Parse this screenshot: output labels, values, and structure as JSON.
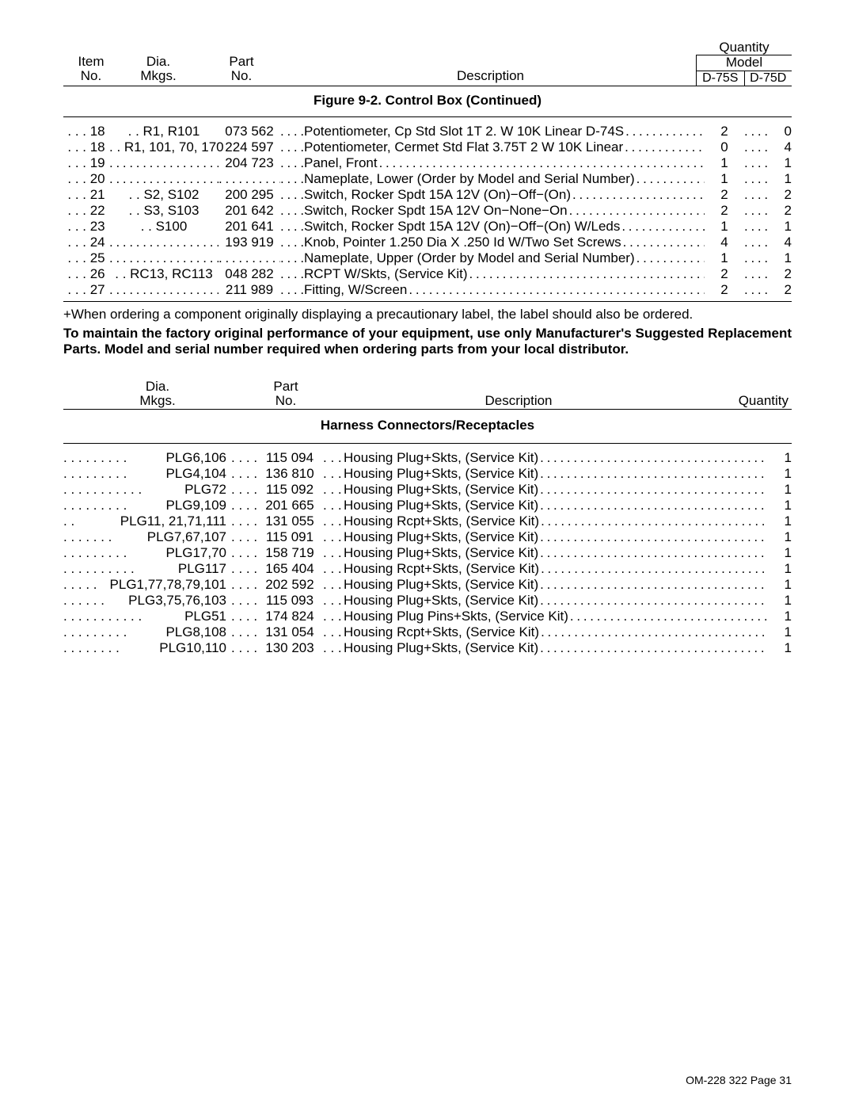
{
  "header1": {
    "quantity": "Quantity",
    "model": "Model",
    "item_no": "Item\nNo.",
    "dia_mkgs": "Dia.\nMkgs.",
    "part_no": "Part\nNo.",
    "description": "Description",
    "model_a": "D-75S",
    "model_b": "D-75D"
  },
  "figcaption1": "Figure 9-2. Control Box (Continued)",
  "parts1": [
    {
      "item": "18",
      "dia": "R1, R101",
      "part": "073 562",
      "desc": "Potentiometer, Cp Std Slot 1T 2. W 10K Linear D-74S",
      "q1": "2",
      "q2": "0"
    },
    {
      "item": "18",
      "dia": "R1, 101, 70, 170",
      "part": "224 597",
      "desc": "Potentiometer, Cermet Std Flat 3.75T 2 W 10K Linear",
      "q1": "0",
      "q2": "4"
    },
    {
      "item": "19",
      "dia": "",
      "part": "204 723",
      "desc": "Panel, Front",
      "q1": "1",
      "q2": "1"
    },
    {
      "item": "20",
      "dia": "",
      "part": "",
      "desc": "Nameplate, Lower (Order by Model and Serial Number)",
      "q1": "1",
      "q2": "1"
    },
    {
      "item": "21",
      "dia": "S2, S102",
      "part": "200 295",
      "desc": "Switch, Rocker Spdt 15A 12V (On)−Off−(On)",
      "q1": "2",
      "q2": "2"
    },
    {
      "item": "22",
      "dia": "S3, S103",
      "part": "201 642",
      "desc": "Switch, Rocker Spdt 15A 12V On−None−On",
      "q1": "2",
      "q2": "2"
    },
    {
      "item": "23",
      "dia": "S100",
      "part": "201 641",
      "desc": "Switch, Rocker Spdt 15A 12V (On)−Off−(On) W/Leds",
      "q1": "1",
      "q2": "1"
    },
    {
      "item": "24",
      "dia": "",
      "part": "193 919",
      "desc": "Knob, Pointer 1.250 Dia X .250 Id W/Two Set Screws",
      "q1": "4",
      "q2": "4"
    },
    {
      "item": "25",
      "dia": "",
      "part": "",
      "desc": "Nameplate, Upper (Order by Model and Serial Number)",
      "q1": "1",
      "q2": "1"
    },
    {
      "item": "26",
      "dia": "RC13, RC113",
      "part": "048 282",
      "desc": "RCPT W/Skts, (Service Kit)",
      "q1": "2",
      "q2": "2"
    },
    {
      "item": "27",
      "dia": "",
      "part": "211 989",
      "desc": "Fitting, W/Screen",
      "q1": "2",
      "q2": "2"
    }
  ],
  "note1": "+When ordering a component originally displaying a precautionary label, the label should also be ordered.",
  "note2": "To maintain the factory original performance of your equipment, use only Manufacturer's Suggested Replacement Parts. Model and serial number required when ordering parts from your local distributor.",
  "header2": {
    "dia_mkgs": "Dia.\nMkgs.",
    "part_no": "Part\nNo.",
    "description": "Description",
    "quantity": "Quantity"
  },
  "figcaption2": "Harness Connectors/Receptacles",
  "parts2": [
    {
      "dia": "PLG6,106",
      "dotsw": 80,
      "part": "115 094",
      "desc": "Housing Plug+Skts, (Service Kit)",
      "qty": "1"
    },
    {
      "dia": "PLG4,104",
      "dotsw": 80,
      "part": "136 810",
      "desc": "Housing Plug+Skts, (Service Kit)",
      "qty": "1"
    },
    {
      "dia": "PLG72",
      "dotsw": 104,
      "part": "115 092",
      "desc": "Housing Plug+Skts, (Service Kit)",
      "qty": "1"
    },
    {
      "dia": "PLG9,109",
      "dotsw": 80,
      "part": "201 665",
      "desc": "Housing Plug+Skts, (Service Kit)",
      "qty": "1"
    },
    {
      "dia": "PLG11, 21,71,111",
      "dotsw": 20,
      "part": "131 055",
      "desc": "Housing Rcpt+Skts, (Service Kit)",
      "qty": "1"
    },
    {
      "dia": "PLG7,67,107",
      "dotsw": 62,
      "part": "115 091",
      "desc": "Housing Plug+Skts, (Service Kit)",
      "qty": "1"
    },
    {
      "dia": "PLG17,70",
      "dotsw": 80,
      "part": "158 719",
      "desc": "Housing Plug+Skts, (Service Kit)",
      "qty": "1"
    },
    {
      "dia": "PLG117",
      "dotsw": 96,
      "part": "165 404",
      "desc": "Housing Rcpt+Skts, (Service Kit)",
      "qty": "1"
    },
    {
      "dia": "PLG1,77,78,79,101",
      "dotsw": 44,
      "part": "202 592",
      "desc": "Housing Plug+Skts, (Service Kit)",
      "qty": "1"
    },
    {
      "dia": "PLG3,75,76,103",
      "dotsw": 52,
      "part": "115 093",
      "desc": "Housing Plug+Skts, (Service Kit)",
      "qty": "1"
    },
    {
      "dia": "PLG51",
      "dotsw": 104,
      "part": "174 824",
      "desc": "Housing Plug Pins+Skts, (Service Kit)",
      "qty": "1"
    },
    {
      "dia": "PLG8,108",
      "dotsw": 80,
      "part": "131 054",
      "desc": "Housing Rcpt+Skts, (Service Kit)",
      "qty": "1"
    },
    {
      "dia": "PLG10,110",
      "dotsw": 74,
      "part": "130 203",
      "desc": "Housing Plug+Skts, (Service Kit)",
      "qty": "1"
    }
  ],
  "footer": "OM-228 322 Page 31"
}
